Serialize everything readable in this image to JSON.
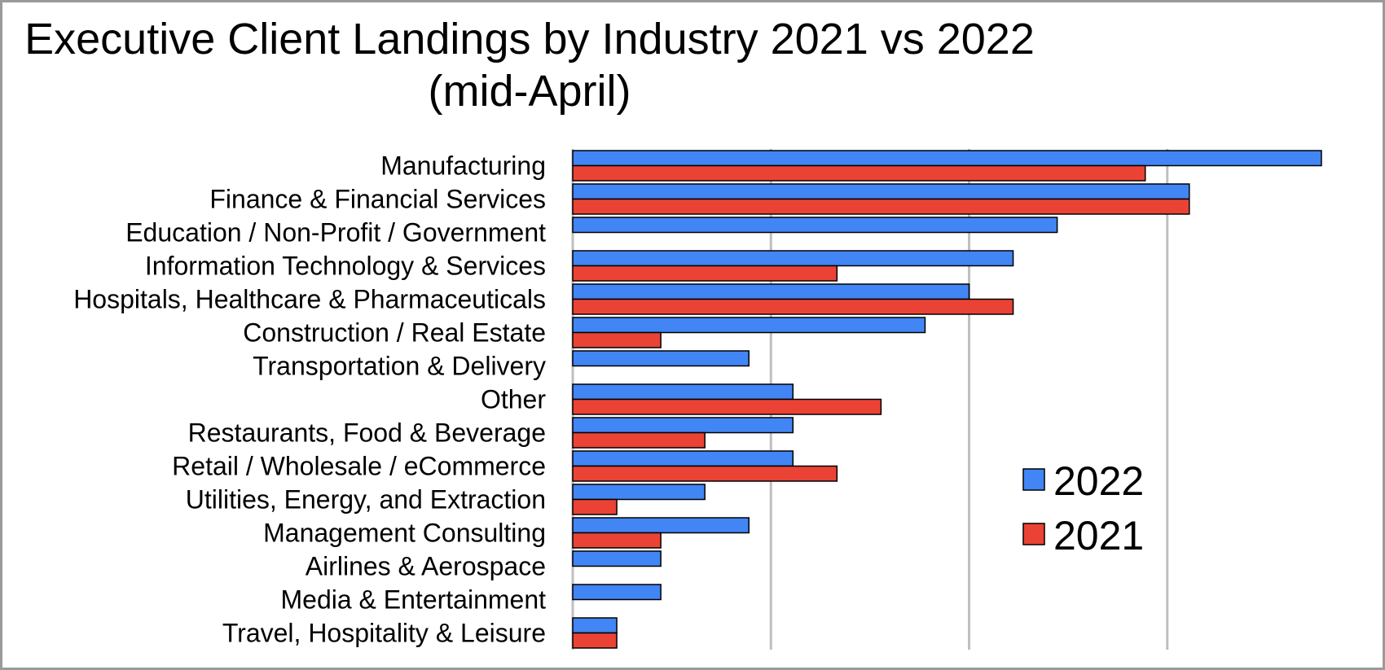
{
  "chart_data": {
    "type": "bar",
    "orientation": "horizontal",
    "title": "Executive Client Landings by Industry 2021 vs 2022 (mid-April)",
    "categories": [
      "Manufacturing",
      "Finance & Financial Services",
      "Education / Non-Profit / Government",
      "Information Technology & Services",
      "Hospitals, Healthcare & Pharmaceuticals",
      "Construction / Real Estate",
      "Transportation & Delivery",
      "Other",
      "Restaurants, Food & Beverage",
      "Retail / Wholesale / eCommerce",
      "Utilities, Energy, and Extraction",
      "Management Consulting",
      "Airlines & Aerospace",
      "Media & Entertainment",
      "Travel, Hospitality & Leisure"
    ],
    "series": [
      {
        "name": "2022",
        "color": "#4285f4",
        "values": [
          17,
          14,
          11,
          10,
          9,
          8,
          4,
          5,
          5,
          5,
          3,
          4,
          2,
          2,
          1
        ]
      },
      {
        "name": "2021",
        "color": "#ea4335",
        "values": [
          13,
          14,
          0,
          6,
          10,
          2,
          0,
          7,
          3,
          6,
          1,
          2,
          0,
          0,
          1
        ]
      }
    ],
    "xlim": [
      0,
      18
    ],
    "grid": true,
    "gridlines_at": [
      4.5,
      9,
      13.5
    ],
    "legend_position": "bottom-right",
    "gridline_color": "#bfbfbf"
  }
}
